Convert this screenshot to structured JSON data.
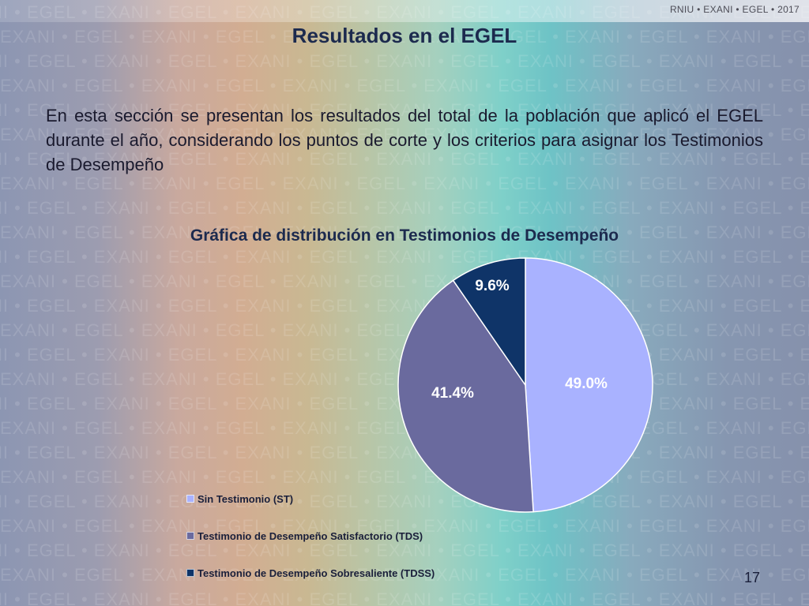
{
  "header": {
    "brand": "RNIU • EXANI • EGEL • 2017",
    "watermark": "EXANI • EGEL"
  },
  "slide": {
    "title": "Resultados en el EGEL",
    "body": "En esta sección se presentan los resultados del total de la población que aplicó el EGEL durante el año, considerando los puntos de corte y los criterios para asignar los Testimonios de Desempeño",
    "page_number": "17"
  },
  "chart_data": {
    "type": "pie",
    "title": "Gráfica de distribución en Testimonios de Desempeño",
    "legend_position": "bottom-left",
    "slices": [
      {
        "name": "Sin Testimonio (ST)",
        "value": 49.0,
        "label": "49.0%",
        "color": "#a9b2ff"
      },
      {
        "name": "Testimonio de Desempeño Satisfactorio (TDS)",
        "value": 41.4,
        "label": "41.4%",
        "color": "#6a6a9e"
      },
      {
        "name": "Testimonio de Desempeño Sobresaliente (TDSS)",
        "value": 9.6,
        "label": "9.6%",
        "color": "#0f3468"
      }
    ]
  }
}
